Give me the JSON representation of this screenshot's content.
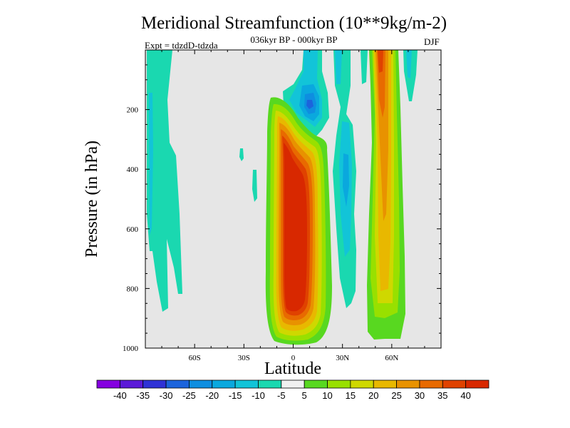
{
  "chart_data": {
    "type": "heatmap",
    "title": "Meridional Streamfunction (10**9kg/m-2)",
    "subtitle": "036kyr BP - 000kyr BP",
    "left_label": "Expt = tdzdD-tdzda",
    "right_label": "DJF",
    "xlabel": "Latitude",
    "ylabel": "Pressure (in hPa)",
    "xlim": [
      -90,
      90
    ],
    "ylim": [
      1000,
      0
    ],
    "x_ticks": [
      {
        "value": -60,
        "label": "60S"
      },
      {
        "value": -30,
        "label": "30S"
      },
      {
        "value": 0,
        "label": "0"
      },
      {
        "value": 30,
        "label": "30N"
      },
      {
        "value": 60,
        "label": "60N"
      }
    ],
    "y_ticks": [
      {
        "value": 200,
        "label": "200"
      },
      {
        "value": 400,
        "label": "400"
      },
      {
        "value": 600,
        "label": "600"
      },
      {
        "value": 800,
        "label": "800"
      },
      {
        "value": 1000,
        "label": "1000"
      }
    ],
    "background_color": "#e6e6e6",
    "levels": [
      -40,
      -35,
      -30,
      -25,
      -20,
      -15,
      -10,
      -5,
      5,
      10,
      15,
      20,
      25,
      30,
      35,
      40
    ],
    "colorbar_labels": [
      "-40",
      "-35",
      "-30",
      "-25",
      "-20",
      "-15",
      "-10",
      "-5",
      "5",
      "10",
      "15",
      "20",
      "25",
      "30",
      "35",
      "40"
    ],
    "colorbar_colors": [
      "#8500e0",
      "#5b1ad8",
      "#2f32d6",
      "#1c64dc",
      "#0e8ee0",
      "#0aa8de",
      "#12c4d8",
      "#1ad8b0",
      "#f0f0f0",
      "#58d820",
      "#98e000",
      "#cfd800",
      "#e8b800",
      "#e89200",
      "#e86a00",
      "#e04200",
      "#d82800"
    ],
    "features": [
      {
        "name": "tropical cell",
        "lat": [
          -10,
          20
        ],
        "pressure": [
          160,
          1000
        ],
        "peak": 42
      },
      {
        "name": "northern midlatitude cell",
        "lat": [
          47,
          67
        ],
        "pressure": [
          0,
          970
        ],
        "peak": 32
      },
      {
        "name": "upper tropical negative cell",
        "lat": [
          0,
          20
        ],
        "pressure": [
          0,
          240
        ],
        "peak": -27
      },
      {
        "name": "northern negative band",
        "lat": [
          30,
          48
        ],
        "pressure": [
          0,
          930
        ],
        "peak": -15
      },
      {
        "name": "southern negative bands",
        "lat": [
          -90,
          -65
        ],
        "pressure": [
          0,
          880
        ],
        "peak": -10
      }
    ]
  }
}
